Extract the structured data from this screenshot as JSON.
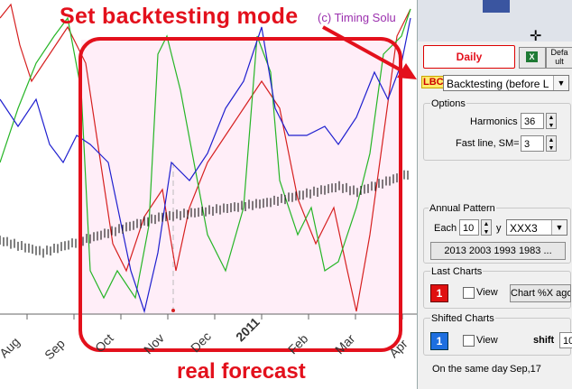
{
  "annotations": {
    "title": "Set backtesting mode",
    "bottom": "real forecast",
    "copyright": "(c) Timing Solu"
  },
  "chart": {
    "months": [
      "Aug",
      "Sep",
      "Oct",
      "Nov",
      "Dec",
      "2011",
      "Feb",
      "Mar",
      "Apr"
    ],
    "year_label": "2011",
    "colors": {
      "price": "#000000",
      "red": "#d62020",
      "green": "#26b526",
      "blue": "#1f1fcf",
      "highlight": "#ffeef8",
      "frame": "#e3101c"
    }
  },
  "panel": {
    "daily_tab": "Daily",
    "default_btn": "Defa ult",
    "lbc_tag": "LBC",
    "mode_combo": "Backtesting (before L",
    "options": {
      "label": "Options",
      "harmonics_label": "Harmonics",
      "harmonics_value": "36",
      "fastline_label": "Fast line, SM=",
      "fastline_value": "3"
    },
    "annual": {
      "label": "Annual Pattern",
      "each_label": "Each",
      "each_value": "10",
      "y_label": "y",
      "pattern_value": "XXX3",
      "years_button": "2013 2003 1993 1983 ..."
    },
    "last_charts": {
      "label": "Last Charts",
      "count": "1",
      "view_label": "View",
      "ago_button": "Chart %X ago"
    },
    "shifted_charts": {
      "label": "Shifted Charts",
      "count": "1",
      "view_label": "View",
      "shift_label": "shift",
      "shift_value": "10"
    },
    "same_day": {
      "label": "On the same day",
      "value": "Sep,17"
    }
  }
}
